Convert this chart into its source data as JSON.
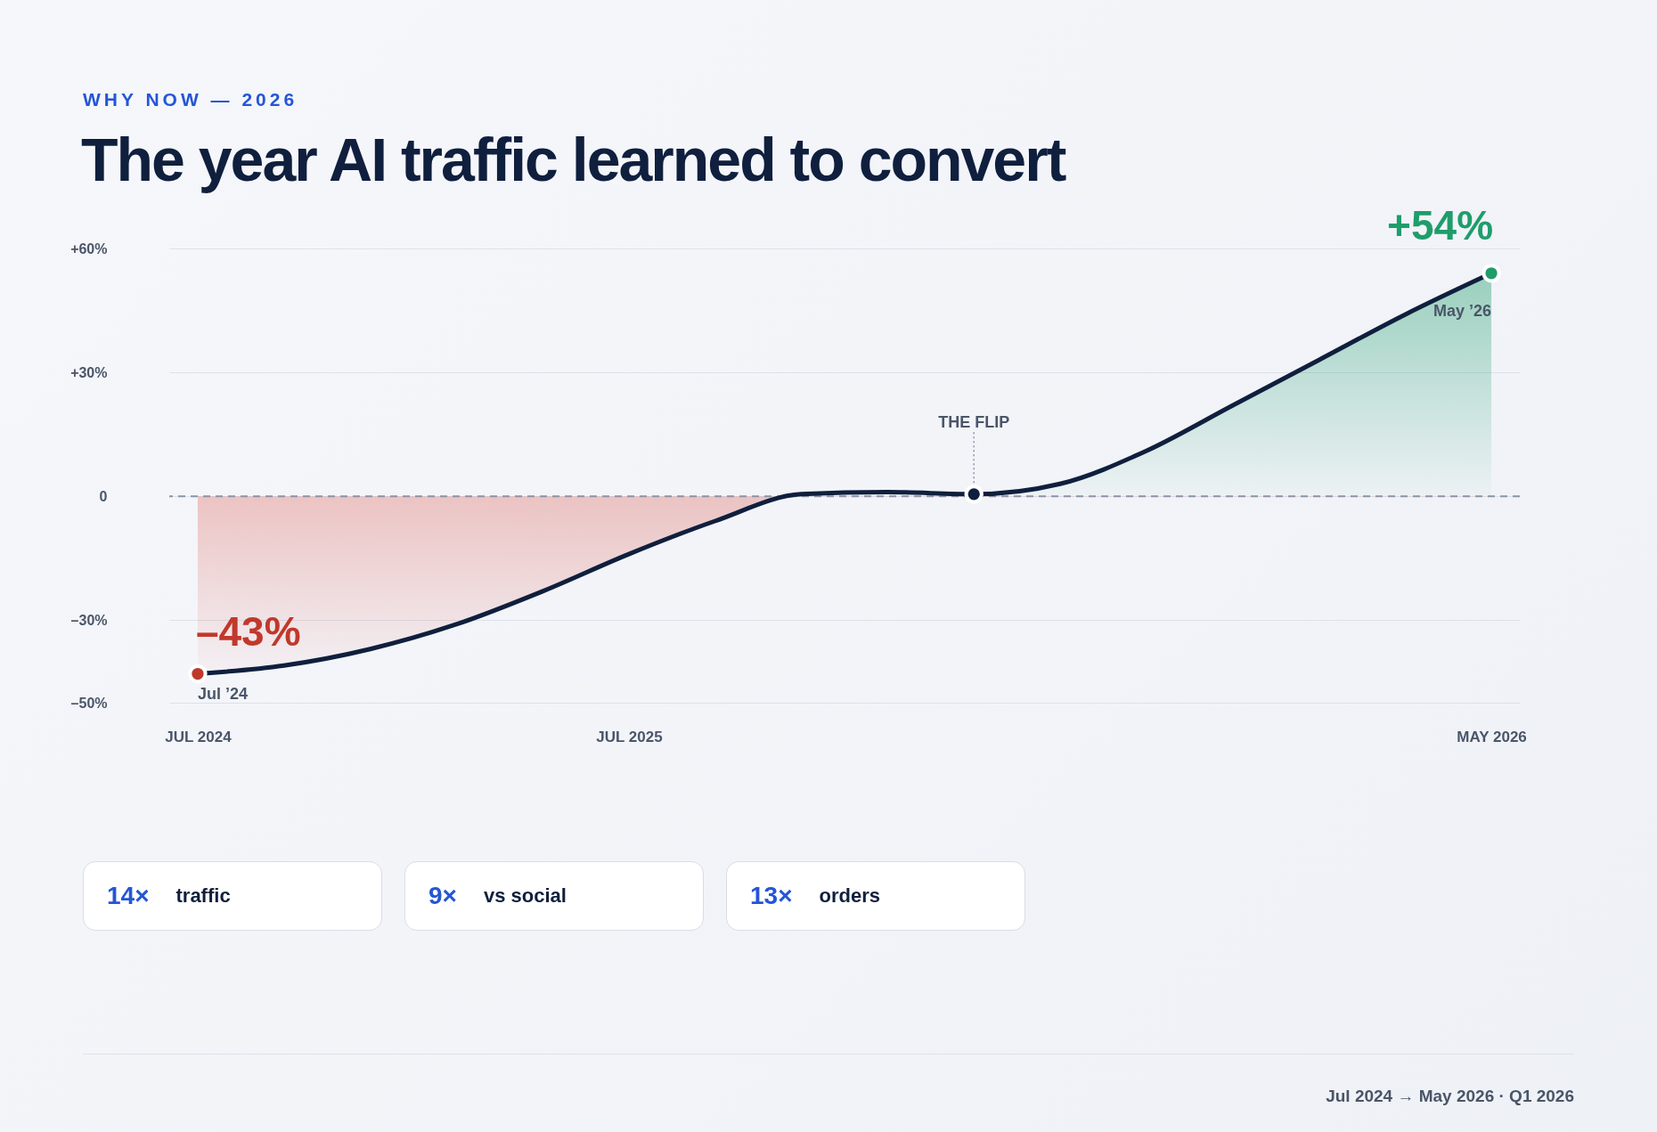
{
  "chart_data": {
    "type": "area",
    "subtitle": "WHY NOW — 2026",
    "title": "The year AI traffic learned to convert",
    "categories": [
      "JUL 2024",
      null,
      null,
      null,
      null,
      "JUL 2025",
      null,
      null,
      null,
      null,
      null,
      null,
      null,
      null,
      null,
      "MAY 2026"
    ],
    "series": [
      {
        "color": "#0f1f3d",
        "values": [
          -43,
          -41,
          -37,
          -31,
          -23,
          -14,
          -6,
          0.5,
          1,
          0.5,
          3,
          11,
          22,
          33,
          44,
          54
        ],
        "colors": [
          "#c0392b",
          null,
          null,
          null,
          null,
          null,
          null,
          null,
          null,
          "#0f1f3d",
          null,
          null,
          null,
          null,
          null,
          "#1f9d6b"
        ],
        "value_labels": [
          "–43%",
          null,
          null,
          null,
          null,
          null,
          null,
          null,
          null,
          null,
          null,
          null,
          null,
          null,
          null,
          "+54%"
        ]
      }
    ],
    "ylim": [
      -50,
      60
    ],
    "yticks": [
      {
        "value": -50,
        "label": "–50%"
      },
      {
        "value": -30,
        "label": "–30%"
      },
      0,
      {
        "value": 30,
        "label": "+30%"
      },
      {
        "value": 60,
        "label": "+60%"
      }
    ],
    "grid": "y",
    "ref_lines": [
      {
        "axis": "y",
        "value": 0,
        "color": "#8a94a6",
        "line_style": "dashed"
      }
    ],
    "annotations": [
      {
        "text": "THE FLIP",
        "y": 0
      },
      "14× traffic",
      "9× vs social",
      "13× orders",
      "Jul 2024 → May 2026 · Q1 2026",
      {
        "text": "Jul ’24",
        "x": "JUL 2024",
        "y": -43
      },
      {
        "text": "May ’26",
        "x": "MAY 2026",
        "y": 54
      }
    ]
  }
}
